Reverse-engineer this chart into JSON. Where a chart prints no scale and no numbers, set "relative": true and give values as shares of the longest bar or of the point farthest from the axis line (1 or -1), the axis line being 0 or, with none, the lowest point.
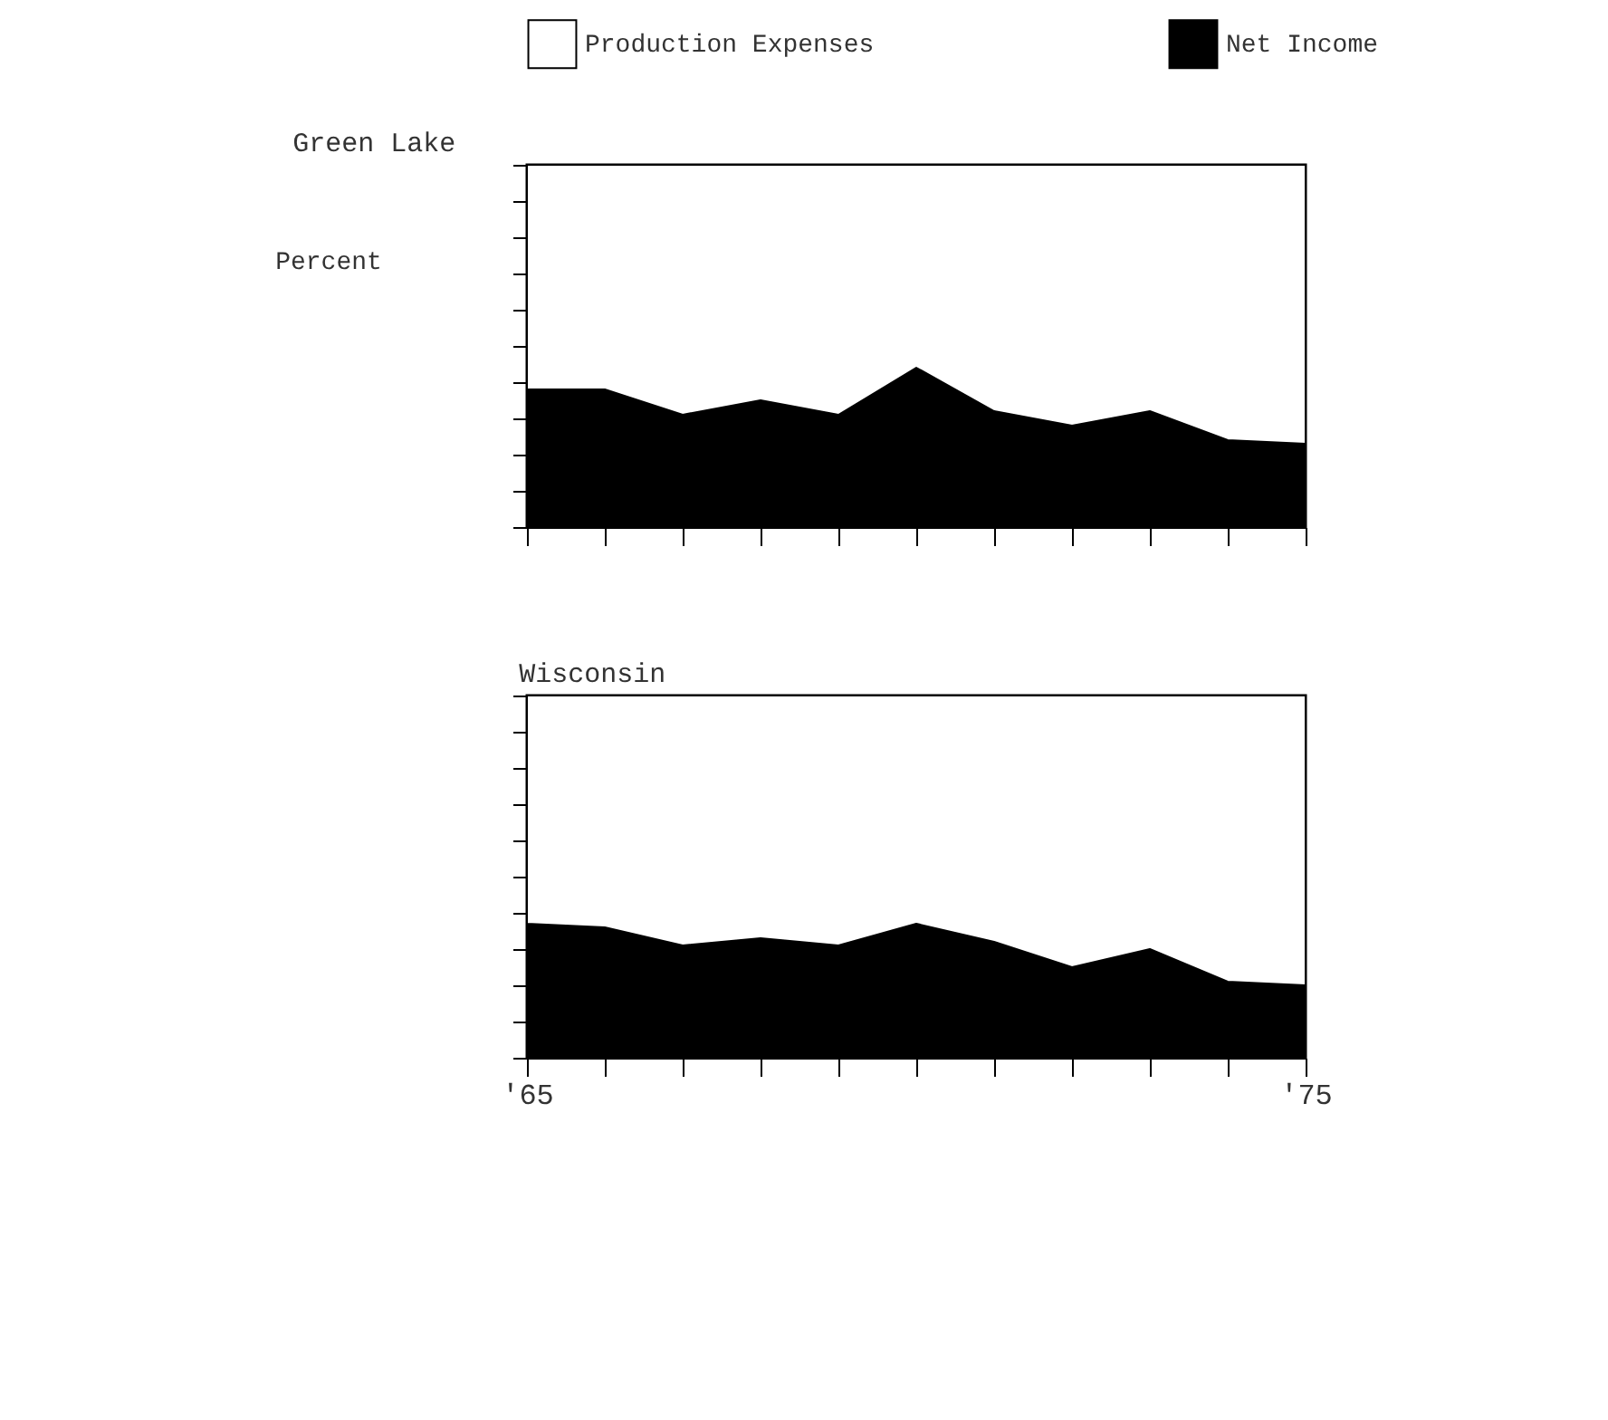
{
  "chart_data": [
    {
      "type": "area",
      "title": "Green Lake",
      "ylabel": "Percent",
      "stacked": true,
      "relative": true,
      "legend": "top",
      "tick_labels": false,
      "categories": [
        null,
        null,
        null,
        null,
        null,
        null,
        null,
        null,
        null,
        null,
        null
      ],
      "series": [
        {
          "name": "Net Income",
          "color": "#000000",
          "values": [
            0.38,
            0.38,
            0.31,
            0.35,
            0.31,
            0.44,
            0.32,
            0.28,
            0.32,
            0.24,
            0.23
          ]
        },
        {
          "name": "Production Expenses",
          "color": "#ffffff",
          "values": [
            0.62,
            0.62,
            0.69,
            0.65,
            0.69,
            0.56,
            0.68,
            0.72,
            0.68,
            0.76,
            0.77
          ]
        }
      ]
    },
    {
      "type": "area",
      "title": "Wisconsin",
      "stacked": true,
      "relative": true,
      "tick_labels": "x",
      "x": [
        1965,
        1966,
        1967,
        1968,
        1969,
        1970,
        1971,
        1972,
        1973,
        1974,
        1975
      ],
      "xlim": [
        1965,
        1975
      ],
      "xticks": [
        {
          "value": 1965,
          "label": "'65"
        },
        {
          "value": 1966,
          "label": null
        },
        {
          "value": 1967,
          "label": null
        },
        {
          "value": 1968,
          "label": null
        },
        {
          "value": 1969,
          "label": null
        },
        {
          "value": 1970,
          "label": null
        },
        {
          "value": 1971,
          "label": null
        },
        {
          "value": 1972,
          "label": null
        },
        {
          "value": 1973,
          "label": null
        },
        {
          "value": 1974,
          "label": null
        },
        {
          "value": 1975,
          "label": "'75"
        }
      ],
      "series": [
        {
          "color": "#000000",
          "values": [
            0.37,
            0.36,
            0.31,
            0.33,
            0.31,
            0.37,
            0.32,
            0.25,
            0.3,
            0.21,
            0.2
          ]
        },
        {
          "color": "#ffffff",
          "values": [
            0.63,
            0.64,
            0.69,
            0.67,
            0.69,
            0.63,
            0.68,
            0.75,
            0.7,
            0.79,
            0.8
          ]
        }
      ]
    }
  ]
}
